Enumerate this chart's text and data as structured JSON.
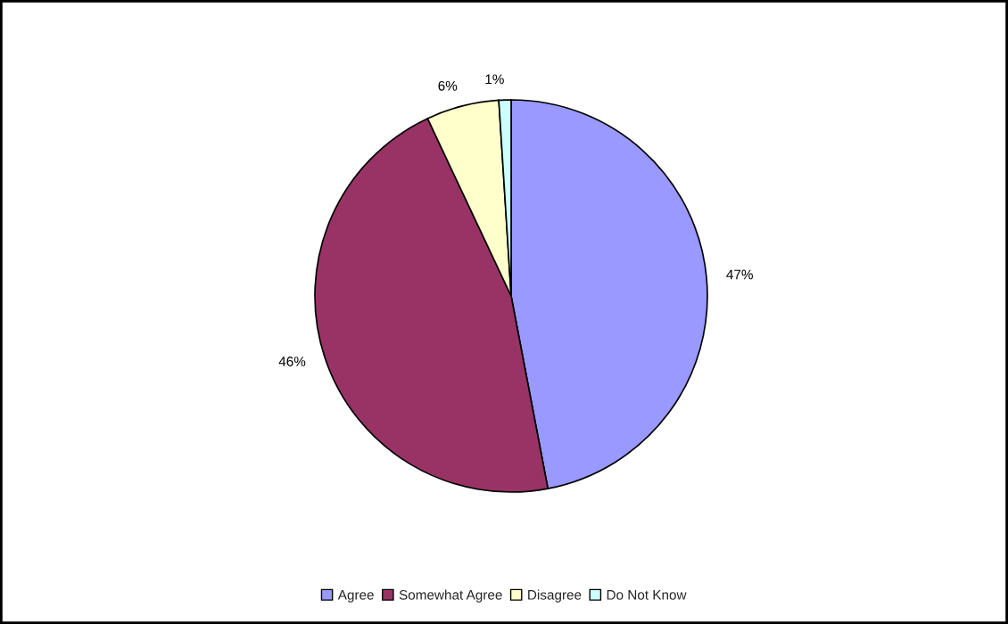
{
  "chart_data": {
    "type": "pie",
    "categories": [
      "Agree",
      "Somewhat Agree",
      "Disagree",
      "Do Not Know"
    ],
    "values": [
      47,
      46,
      6,
      1
    ],
    "colors": [
      "#9999ff",
      "#993366",
      "#ffffcc",
      "#ccffff"
    ],
    "value_labels": [
      "47%",
      "46%",
      "6%",
      "1%"
    ],
    "legend": "bottom"
  }
}
